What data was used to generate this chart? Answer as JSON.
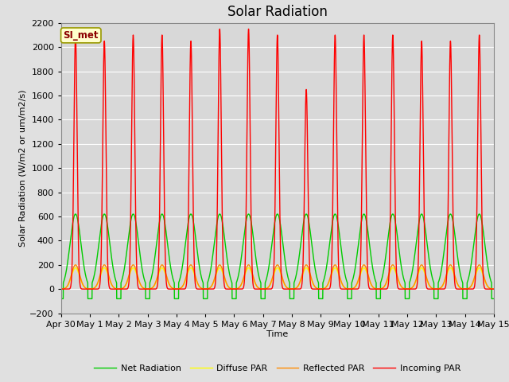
{
  "title": "Solar Radiation",
  "xlabel": "Time",
  "ylabel": "Solar Radiation (W/m2 or um/m2/s)",
  "ylim": [
    -200,
    2200
  ],
  "yticks": [
    -200,
    0,
    200,
    400,
    600,
    800,
    1000,
    1200,
    1400,
    1600,
    1800,
    2000,
    2200
  ],
  "xtick_labels": [
    "Apr 30",
    "May 1",
    "May 2",
    "May 3",
    "May 4",
    "May 5",
    "May 6",
    "May 7",
    "May 8",
    "May 9",
    "May 10",
    "May 11",
    "May 12",
    "May 13",
    "May 14",
    "May 15"
  ],
  "legend_labels": [
    "Incoming PAR",
    "Reflected PAR",
    "Diffuse PAR",
    "Net Radiation"
  ],
  "legend_colors": [
    "#ff0000",
    "#ff8c00",
    "#ffff00",
    "#00cc00"
  ],
  "annotation_text": "SI_met",
  "annotation_fg": "#8b0000",
  "annotation_bg": "#ffffcc",
  "annotation_edge": "#999900",
  "bg_color": "#e0e0e0",
  "plot_bg_color": "#d8d8d8",
  "grid_color": "#ffffff",
  "title_fontsize": 12,
  "label_fontsize": 8,
  "tick_fontsize": 8,
  "n_days": 15,
  "peaks_incoming": [
    2100,
    2050,
    2100,
    2100,
    2050,
    2150,
    2150,
    2100,
    1650,
    2100,
    2100,
    2100,
    2050,
    2050,
    2100
  ],
  "night_net": -80,
  "day_net_peak": 620,
  "reflected_peak": 200,
  "diffuse_peak": 175
}
